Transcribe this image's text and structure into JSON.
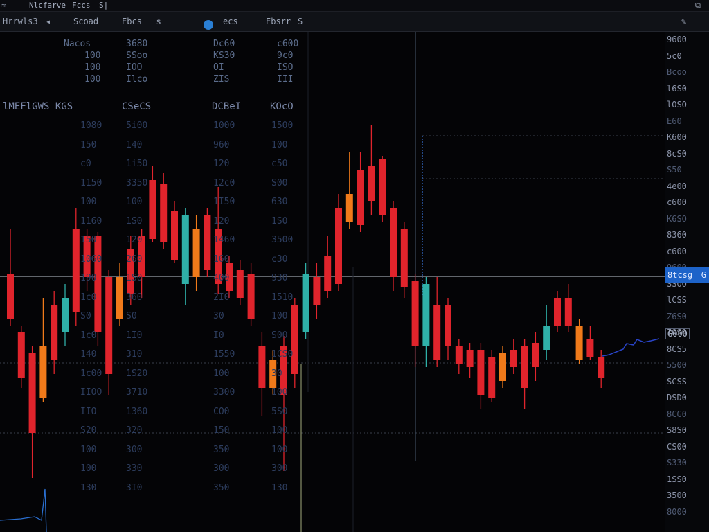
{
  "window": {
    "tabs": [
      "Nlcfarve",
      "Fccs",
      "S|"
    ]
  },
  "toolbar": {
    "symbol": "Hrrwls3",
    "interval": "Scoad",
    "indicator": "Ebcs",
    "pair": "ecs",
    "exchange": "Ebsrr",
    "extra": "S"
  },
  "columns": {
    "header": [
      "lMEFlGWS KGS",
      "CSeCS",
      "DCBeI",
      "KOcO"
    ],
    "top_block": [
      [
        "Nacos",
        "3680",
        "Dc60",
        "c600"
      ],
      [
        "100",
        "SSoo",
        "KS30",
        "9c0"
      ],
      [
        "100",
        "IOO",
        "OI",
        "ISO"
      ],
      [
        "100",
        "Ilco",
        "ZIS",
        "III"
      ]
    ],
    "col1": [
      "1080",
      "150",
      "c0",
      "1150",
      "100",
      "1160",
      "150",
      "1060",
      "190",
      "1c0",
      "S0",
      "1c0",
      "140",
      "1c00",
      "IIOO",
      "IIO",
      "S20",
      "100",
      "100",
      "130"
    ],
    "col2": [
      "5i00",
      "140",
      "1i50",
      "3350",
      "100",
      "1S0",
      "120",
      "260",
      "1S0",
      "360",
      "S0",
      "1I0",
      "310",
      "1S20",
      "3710",
      "1360",
      "320",
      "300",
      "330",
      "3I0"
    ],
    "col3": [
      "1000",
      "960",
      "120",
      "12c0",
      "1I50",
      "120",
      "1460",
      "160",
      "400",
      "2I0",
      "30",
      "I0",
      "1550",
      "100",
      "3300",
      "CO0",
      "150",
      "350",
      "300",
      "350"
    ],
    "col4": [
      "1500",
      "100",
      "c50",
      "S00",
      "630",
      "1S0",
      "3500",
      "c30",
      "930",
      "1510",
      "100",
      "S00",
      "1CS0",
      "30",
      "100",
      "5S0",
      "100",
      "100",
      "300",
      "130"
    ]
  },
  "yaxis": {
    "labels": [
      "9600",
      "5c0",
      "Bcoo",
      "l6S0",
      "lOSO",
      "E60",
      "K600",
      "8cS0",
      "S50",
      "4e00",
      "c600",
      "K6SO",
      "8360",
      "c600",
      "9600",
      "SSOO",
      "lCSS",
      "Z6S0",
      "IOSO",
      "8CS5",
      "5500",
      "SCSS",
      "DSD0",
      "8CG0",
      "S8S0",
      "CS00",
      "S330",
      "1SS0",
      "3500",
      "8000"
    ],
    "current_price": "8tcsg",
    "current_price_suffix": "G",
    "marker": "G000"
  },
  "colors": {
    "up": "#2f8fe0",
    "down": "#e0242c",
    "accent": "#f07a1a",
    "teal": "#2fb0a8",
    "price_line": "#9aa0aa",
    "background": "#040406"
  },
  "chart_data": {
    "type": "candlestick",
    "series": [
      {
        "o": 395,
        "c": 460,
        "h": 330,
        "l": 470
      },
      {
        "o": 480,
        "c": 545,
        "h": 470,
        "l": 560
      },
      {
        "o": 510,
        "c": 625,
        "h": 500,
        "l": 690
      },
      {
        "o": 500,
        "c": 575,
        "h": 430,
        "l": 580
      },
      {
        "o": 440,
        "c": 520,
        "h": 420,
        "l": 540
      },
      {
        "o": 430,
        "c": 480,
        "h": 410,
        "l": 500
      },
      {
        "o": 330,
        "c": 450,
        "h": 300,
        "l": 470
      },
      {
        "o": 340,
        "c": 400,
        "h": 330,
        "l": 420
      },
      {
        "o": 340,
        "c": 480,
        "h": 335,
        "l": 500
      },
      {
        "o": 400,
        "c": 540,
        "h": 390,
        "l": 570
      },
      {
        "o": 400,
        "c": 460,
        "h": 380,
        "l": 470
      },
      {
        "o": 360,
        "c": 425,
        "h": 340,
        "l": 440
      },
      {
        "o": 340,
        "c": 400,
        "h": 330,
        "l": 430
      },
      {
        "o": 260,
        "c": 345,
        "h": 240,
        "l": 350
      },
      {
        "o": 265,
        "c": 350,
        "h": 250,
        "l": 360
      },
      {
        "o": 305,
        "c": 375,
        "h": 290,
        "l": 380
      },
      {
        "o": 310,
        "c": 410,
        "h": 300,
        "l": 440
      },
      {
        "o": 330,
        "c": 400,
        "h": 310,
        "l": 420
      },
      {
        "o": 310,
        "c": 390,
        "h": 300,
        "l": 400
      },
      {
        "o": 330,
        "c": 410,
        "h": 270,
        "l": 425
      },
      {
        "o": 380,
        "c": 420,
        "h": 370,
        "l": 430
      },
      {
        "o": 390,
        "c": 430,
        "h": 375,
        "l": 440
      },
      {
        "o": 395,
        "c": 460,
        "h": 380,
        "l": 470
      },
      {
        "o": 500,
        "c": 560,
        "h": 480,
        "l": 600
      },
      {
        "o": 520,
        "c": 560,
        "h": 505,
        "l": 570
      },
      {
        "o": 500,
        "c": 570,
        "h": 485,
        "l": 680
      },
      {
        "o": 440,
        "c": 540,
        "h": 430,
        "l": 560
      },
      {
        "o": 395,
        "c": 480,
        "h": 380,
        "l": 490
      },
      {
        "o": 400,
        "c": 440,
        "h": 380,
        "l": 460
      },
      {
        "o": 370,
        "c": 420,
        "h": 340,
        "l": 430
      },
      {
        "o": 300,
        "c": 410,
        "h": 280,
        "l": 420
      },
      {
        "o": 280,
        "c": 320,
        "h": 220,
        "l": 330
      },
      {
        "o": 245,
        "c": 325,
        "h": 220,
        "l": 335
      },
      {
        "o": 240,
        "c": 290,
        "h": 180,
        "l": 310
      },
      {
        "o": 230,
        "c": 310,
        "h": 225,
        "l": 320
      },
      {
        "o": 300,
        "c": 400,
        "h": 290,
        "l": 420
      },
      {
        "o": 330,
        "c": 415,
        "h": 320,
        "l": 430
      },
      {
        "o": 405,
        "c": 500,
        "h": 395,
        "l": 530
      },
      {
        "o": 410,
        "c": 500,
        "h": 400,
        "l": 530
      },
      {
        "o": 440,
        "c": 520,
        "h": 400,
        "l": 530
      },
      {
        "o": 440,
        "c": 500,
        "h": 430,
        "l": 520
      },
      {
        "o": 500,
        "c": 525,
        "h": 490,
        "l": 540
      },
      {
        "o": 505,
        "c": 530,
        "h": 495,
        "l": 545
      },
      {
        "o": 505,
        "c": 570,
        "h": 495,
        "l": 590
      },
      {
        "o": 515,
        "c": 575,
        "h": 505,
        "l": 580
      },
      {
        "o": 510,
        "c": 550,
        "h": 500,
        "l": 560
      },
      {
        "o": 505,
        "c": 530,
        "h": 490,
        "l": 540
      },
      {
        "o": 500,
        "c": 560,
        "h": 490,
        "l": 590
      },
      {
        "o": 495,
        "c": 530,
        "h": 480,
        "l": 550
      },
      {
        "o": 470,
        "c": 505,
        "h": 440,
        "l": 520
      },
      {
        "o": 430,
        "c": 470,
        "h": 420,
        "l": 480
      },
      {
        "o": 430,
        "c": 470,
        "h": 410,
        "l": 480
      },
      {
        "o": 470,
        "c": 520,
        "h": 460,
        "l": 525
      },
      {
        "o": 490,
        "c": 515,
        "h": 470,
        "l": 520
      },
      {
        "o": 515,
        "c": 545,
        "h": 505,
        "l": 560
      }
    ]
  }
}
